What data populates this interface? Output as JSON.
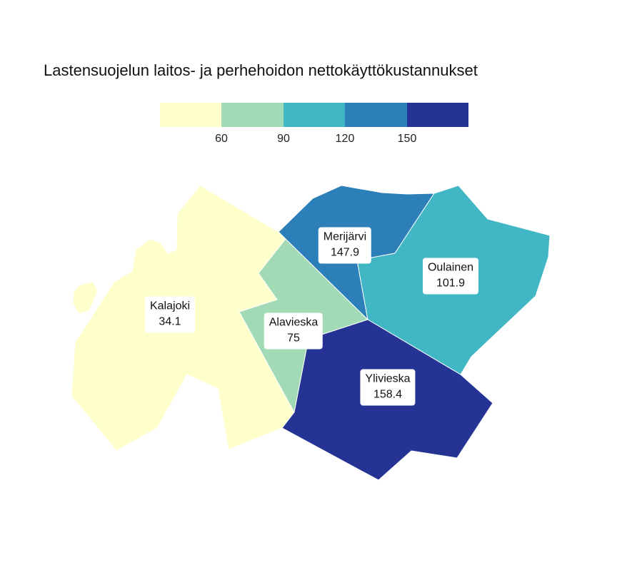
{
  "title": "Lastensuojelun laitos- ja perhehoidon nettokäyttökustannukset",
  "legend": {
    "colors": [
      "#ffffcc",
      "#a1dab4",
      "#41b6c4",
      "#2c7fb8",
      "#253494"
    ],
    "breaks": [
      "60",
      "90",
      "120",
      "150"
    ]
  },
  "regions": [
    {
      "id": "kalajoki",
      "name": "Kalajoki",
      "value": "34.1",
      "color": "#ffffcc"
    },
    {
      "id": "alavieska",
      "name": "Alavieska",
      "value": "75",
      "color": "#a1dab4"
    },
    {
      "id": "merijarvi",
      "name": "Merijärvi",
      "value": "147.9",
      "color": "#2c7fb8"
    },
    {
      "id": "oulainen",
      "name": "Oulainen",
      "value": "101.9",
      "color": "#41b6c4"
    },
    {
      "id": "ylivieska",
      "name": "Ylivieska",
      "value": "158.4",
      "color": "#253494"
    }
  ]
}
